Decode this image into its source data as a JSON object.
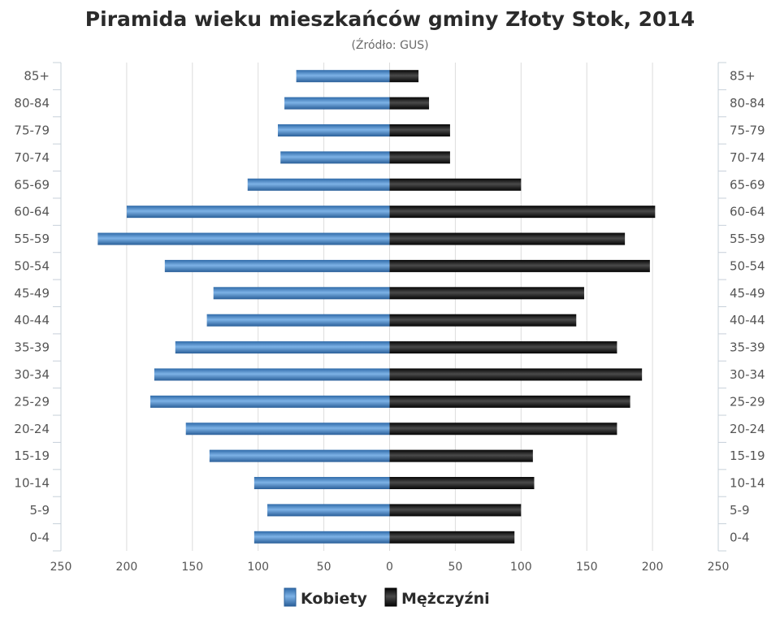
{
  "chart_data": {
    "type": "bar",
    "title": "Piramida wieku mieszkańców gminy Złoty Stok, 2014",
    "subtitle": "(Źródło: GUS)",
    "categories": [
      "85+",
      "80-84",
      "75-79",
      "70-74",
      "65-69",
      "60-64",
      "55-59",
      "50-54",
      "45-49",
      "40-44",
      "35-39",
      "30-34",
      "25-29",
      "20-24",
      "15-19",
      "10-14",
      "5-9",
      "0-4"
    ],
    "series": [
      {
        "name": "Kobiety",
        "color": "#3d7fc1",
        "values": [
          71,
          80,
          85,
          83,
          108,
          200,
          222,
          171,
          134,
          139,
          163,
          179,
          182,
          155,
          137,
          103,
          93,
          103
        ]
      },
      {
        "name": "Mężczyźni",
        "color": "#1a1a1a",
        "values": [
          22,
          30,
          46,
          46,
          100,
          202,
          179,
          198,
          148,
          142,
          173,
          192,
          183,
          173,
          109,
          110,
          100,
          95
        ]
      }
    ],
    "x_ticks": [
      "250",
      "200",
      "150",
      "100",
      "50",
      "0",
      "50",
      "100",
      "150",
      "200",
      "250"
    ],
    "xlim": [
      -250,
      250
    ],
    "grid": true,
    "legend_position": "bottom"
  }
}
